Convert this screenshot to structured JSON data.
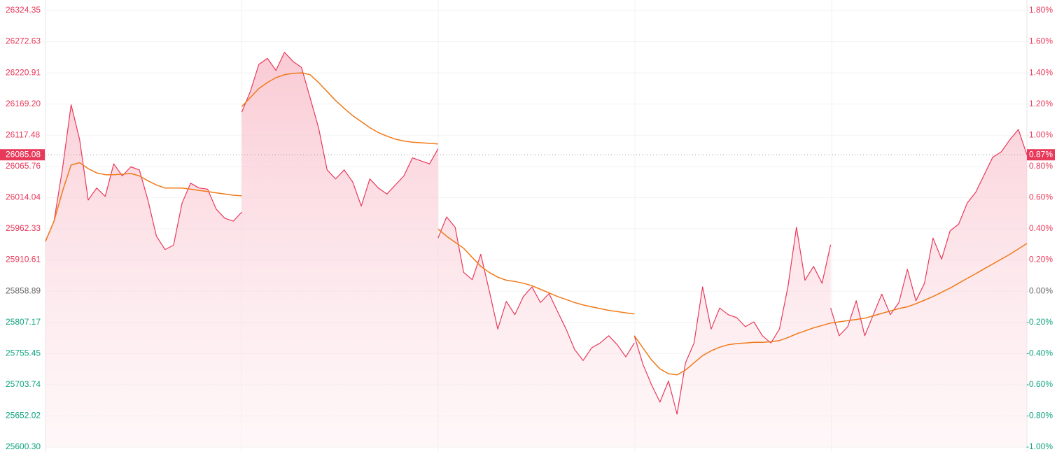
{
  "chart_data": {
    "type": "line",
    "ylim": [
      25600.3,
      26324.35
    ],
    "yticks": [
      26324.35,
      26272.63,
      26220.91,
      {
        "value": 26169.2,
        "label": "26169.20"
      },
      26117.48,
      26065.76,
      26014.04,
      25962.33,
      25910.61,
      25858.89,
      25807.17,
      25755.45,
      25703.74,
      25652.02,
      {
        "value": 25600.3,
        "label": "25600.30"
      }
    ],
    "y2lim": [
      -1.0,
      1.8
    ],
    "y2ticks": [
      {
        "value": 1.8,
        "label": "1.80%"
      },
      {
        "value": 1.6,
        "label": "1.60%"
      },
      {
        "value": 1.4,
        "label": "1.40%"
      },
      {
        "value": 1.2,
        "label": "1.20%"
      },
      {
        "value": 1.0,
        "label": "1.00%"
      },
      {
        "value": 0.8,
        "label": "0.80%"
      },
      {
        "value": 0.6,
        "label": "0.60%"
      },
      {
        "value": 0.4,
        "label": "0.40%"
      },
      {
        "value": 0.2,
        "label": "0.20%"
      },
      {
        "value": 0.0,
        "label": "0.00%"
      },
      {
        "value": -0.2,
        "label": "-0.20%"
      },
      {
        "value": -0.4,
        "label": "-0.40%"
      },
      {
        "value": -0.6,
        "label": "-0.60%"
      },
      {
        "value": -0.8,
        "label": "-0.80%"
      },
      {
        "value": -1.0,
        "label": "-1.00%"
      }
    ],
    "base": 25858.89,
    "last": 26085.08,
    "last_pct": {
      "value": 0.87,
      "label": "0.87%"
    },
    "grid": true,
    "up_color": "#e8395a",
    "down_color": "#10a37f",
    "flat_color": "#666666",
    "series": [
      {
        "color": "#e8395a",
        "values": [
          25941.4,
          25975,
          26063,
          26168,
          26110,
          26010,
          26030,
          26016,
          26070,
          26050,
          26065,
          26060,
          26010,
          25950,
          25928,
          25935,
          26005,
          26038,
          26030,
          26028,
          25995,
          25980,
          25975,
          25990,
          null,
          26156,
          26190,
          26235,
          26245,
          26225,
          26255,
          26240,
          26230,
          26180,
          26130,
          26060,
          26045,
          26060,
          26040,
          26000,
          26045,
          26030,
          26020,
          26035,
          26050,
          26080,
          26075,
          26070,
          26095,
          null,
          25947,
          25982,
          25965,
          25890,
          25878,
          25920,
          25860,
          25796,
          25842,
          25820,
          25850,
          25866,
          25840,
          25855,
          25825,
          25796,
          25762,
          25744,
          25765,
          25773,
          25785,
          25770,
          25750,
          25773,
          null,
          25785,
          25738,
          25704,
          25675,
          25710,
          25655,
          25740,
          25773,
          25866,
          25796,
          25831,
          25820,
          25815,
          25800,
          25808,
          25785,
          25773,
          25796,
          25866,
          25965,
          25877,
          25900,
          25872,
          25936,
          null,
          25831,
          25785,
          25800,
          25843,
          25785,
          25820,
          25854,
          25820,
          25840,
          25895,
          25843,
          25872,
          25947,
          25912,
          25959,
          25970,
          26005,
          26023,
          26052,
          26081,
          26090,
          26110,
          26127,
          26085.08
        ]
      },
      {
        "color": "#f07a1a",
        "values": [
          25942,
          25975,
          26025,
          26068,
          26072,
          26062,
          26055,
          26052,
          26052,
          26053,
          26054,
          26050,
          26042,
          26035,
          26030,
          26030,
          26030,
          26028,
          26026,
          26024,
          26022,
          26020,
          26018,
          26017,
          null,
          26165,
          26180,
          26195,
          26205,
          26213,
          26218,
          26220,
          26221,
          26218,
          26205,
          26190,
          26175,
          26162,
          26150,
          26140,
          26130,
          26122,
          26116,
          26111,
          26108,
          26106,
          26105,
          26104,
          26103,
          null,
          25962,
          25950,
          25940,
          25930,
          25915,
          25900,
          25890,
          25882,
          25877,
          25875,
          25872,
          25868,
          25862,
          25856,
          25850,
          25845,
          25840,
          25836,
          25833,
          25830,
          25827,
          25825,
          25823,
          25821,
          null,
          25785,
          25765,
          25745,
          25730,
          25722,
          25720,
          25728,
          25740,
          25752,
          25760,
          25766,
          25770,
          25772,
          25773,
          25774,
          25774,
          25775,
          25777,
          25782,
          25788,
          25793,
          25798,
          25802,
          25806,
          null,
          25806,
          25808,
          25810,
          25812,
          25814,
          25818,
          25822,
          25826,
          25830,
          25833,
          25838,
          25844,
          25850,
          25857,
          25864,
          25872,
          25880,
          25888,
          25896,
          25904,
          25912,
          25920,
          25929,
          25938
        ]
      }
    ]
  }
}
